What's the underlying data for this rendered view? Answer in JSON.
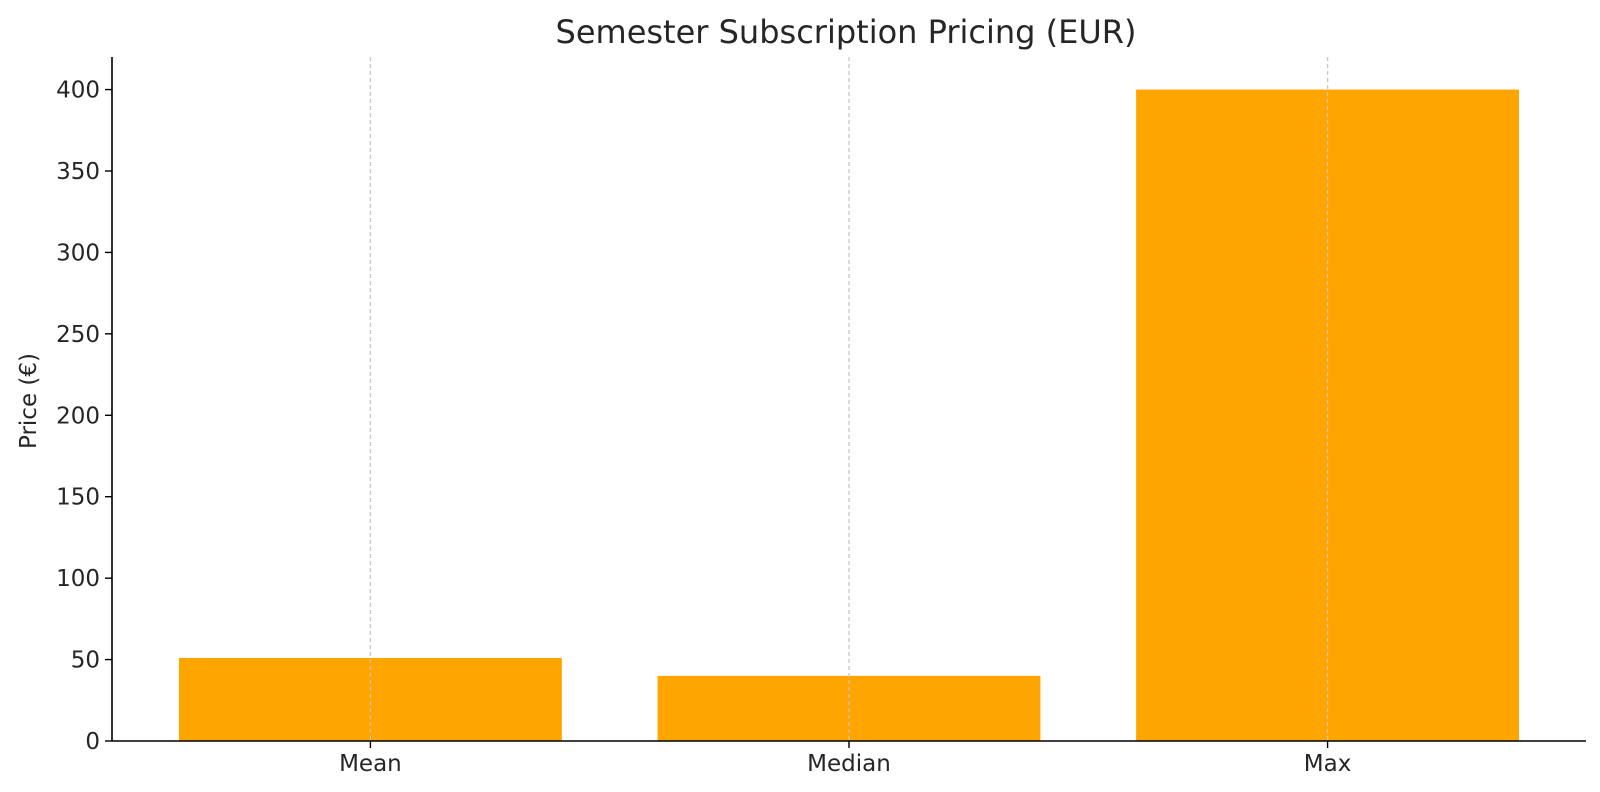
{
  "chart_data": {
    "type": "bar",
    "title": "Semester Subscription Pricing (EUR)",
    "xlabel": "",
    "ylabel": "Price (€)",
    "categories": [
      "Mean",
      "Median",
      "Max"
    ],
    "values": [
      51,
      40,
      400
    ],
    "ylim": [
      0,
      420
    ],
    "yticks": [
      0,
      50,
      100,
      150,
      200,
      250,
      300,
      350,
      400
    ],
    "grid": "vertical-dashed",
    "bar_color": "#FFA500",
    "legend": "none"
  }
}
